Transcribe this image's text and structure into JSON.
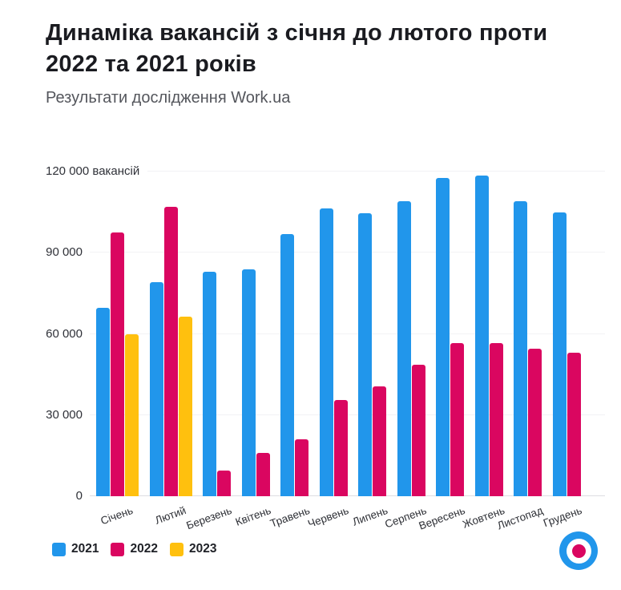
{
  "header": {
    "title_lines": [
      "Динаміка вакансій з січня до лютого проти",
      "2022 та 2021 років"
    ],
    "subtitle": "Результати дослідження Work.ua"
  },
  "colors": {
    "blue": "#2196eb",
    "crimson": "#da0660",
    "yellow": "#ffc00e",
    "background": "#ffffff",
    "grid": "#f2f2f5",
    "axis": "#dcdde1",
    "title_text": "#1a1b20",
    "subtitle_text": "#54565c",
    "tick_text": "#2f3138"
  },
  "chart_data": {
    "type": "bar",
    "title": "Динаміка вакансій з січня до лютого проти 2022 та 2021 років",
    "subtitle": "Результати дослідження Work.ua",
    "unit_label": "вакансій",
    "y_axis_top_label": "120 000 вакансій",
    "categories": [
      "Січень",
      "Лютий",
      "Березень",
      "Квітень",
      "Травень",
      "Червень",
      "Липень",
      "Серпень",
      "Вересень",
      "Жовтень",
      "Листопад",
      "Грудень"
    ],
    "series": [
      {
        "name": "2021",
        "color_key": "blue",
        "values": [
          69500,
          79000,
          83000,
          84000,
          97000,
          106500,
          104500,
          109000,
          117500,
          118500,
          109000,
          105000
        ]
      },
      {
        "name": "2022",
        "color_key": "crimson",
        "values": [
          97500,
          107000,
          9500,
          16000,
          21000,
          35500,
          40500,
          48500,
          56500,
          56500,
          54500,
          53000
        ]
      },
      {
        "name": "2023",
        "color_key": "yellow",
        "values": [
          59800,
          66500,
          null,
          null,
          null,
          null,
          null,
          null,
          null,
          null,
          null,
          null
        ]
      }
    ],
    "ylim": [
      0,
      120000
    ],
    "y_ticks": [
      {
        "value": 0,
        "label": "0"
      },
      {
        "value": 30000,
        "label": "30 000"
      },
      {
        "value": 60000,
        "label": "60 000"
      },
      {
        "value": 90000,
        "label": "90 000"
      },
      {
        "value": 120000,
        "label": ""
      }
    ],
    "grid": true,
    "legend_position": "bottom-left",
    "xlabel_rotation_deg": -20
  },
  "legend": {
    "items": [
      {
        "label": "2021",
        "color_key": "blue"
      },
      {
        "label": "2022",
        "color_key": "crimson"
      },
      {
        "label": "2023",
        "color_key": "yellow"
      }
    ]
  },
  "logo": {
    "name": "work-ua-bullseye-logo"
  }
}
